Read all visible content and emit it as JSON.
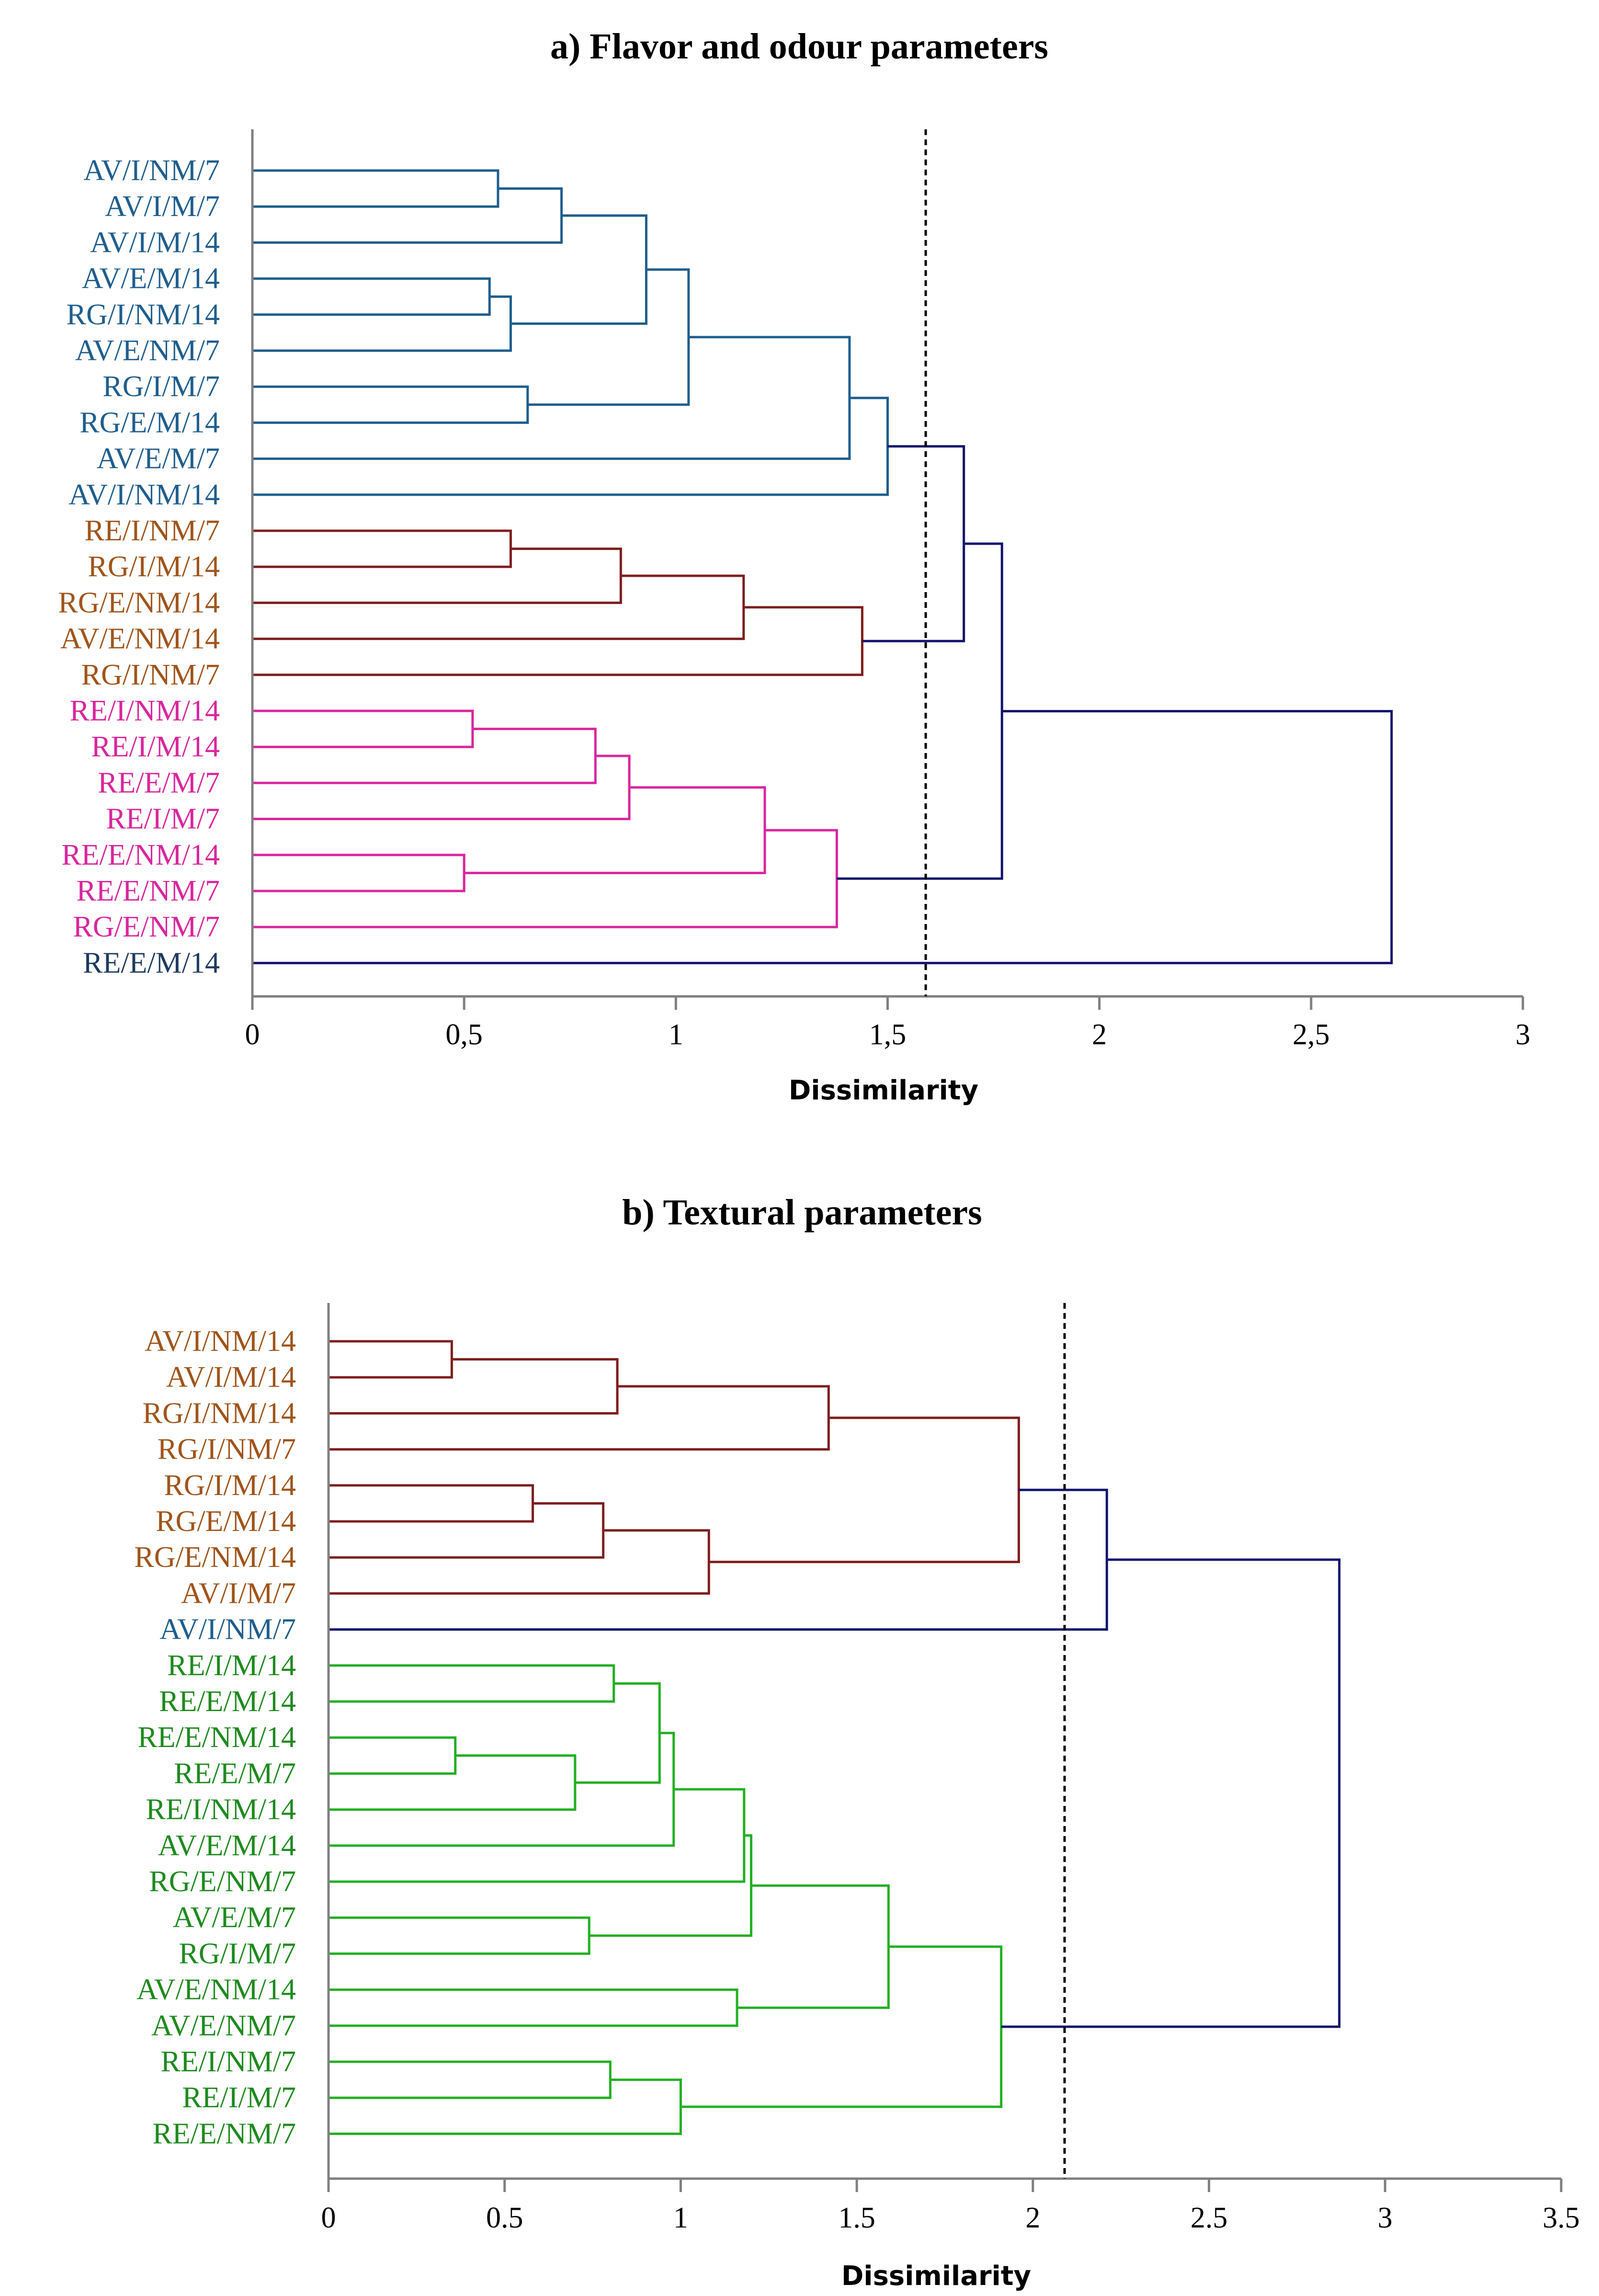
{
  "chart_data": [
    {
      "type": "dendrogram",
      "title": "a) Flavor and odour parameters",
      "xlabel": "Dissimilarity",
      "xlim": [
        0,
        3
      ],
      "xticks": [
        0,
        0.5,
        1,
        1.5,
        2,
        2.5,
        3
      ],
      "tick_labels": [
        "0",
        "0,5",
        "1",
        "1,5",
        "2",
        "2,5",
        "3"
      ],
      "cutoff": 1.59,
      "colors": {
        "blue": "#1F5E8E",
        "red": "#7F1E1E",
        "orange": "#A0541A",
        "magenta": "#D9269E",
        "navy": "#14146E",
        "darkblue": "#1E3A5F"
      },
      "leaves": [
        {
          "label": "AV/I/NM/7",
          "color": "#1F5E8E"
        },
        {
          "label": "AV/I/M/7",
          "color": "#1F5E8E"
        },
        {
          "label": "AV/I/M/14",
          "color": "#1F5E8E"
        },
        {
          "label": "AV/E/M/14",
          "color": "#1F5E8E"
        },
        {
          "label": "RG/I/NM/14",
          "color": "#1F5E8E"
        },
        {
          "label": "AV/E/NM/7",
          "color": "#1F5E8E"
        },
        {
          "label": "RG/I/M/7",
          "color": "#1F5E8E"
        },
        {
          "label": "RG/E/M/14",
          "color": "#1F5E8E"
        },
        {
          "label": "AV/E/M/7",
          "color": "#1F5E8E"
        },
        {
          "label": "AV/I/NM/14",
          "color": "#1F5E8E"
        },
        {
          "label": "RE/I/NM/7",
          "color": "#A0541A"
        },
        {
          "label": "RG/I/M/14",
          "color": "#A0541A"
        },
        {
          "label": "RG/E/NM/14",
          "color": "#A0541A"
        },
        {
          "label": "AV/E/NM/14",
          "color": "#A0541A"
        },
        {
          "label": "RG/I/NM/7",
          "color": "#A0541A"
        },
        {
          "label": "RE/I/NM/14",
          "color": "#D9269E"
        },
        {
          "label": "RE/I/M/14",
          "color": "#D9269E"
        },
        {
          "label": "RE/E/M/7",
          "color": "#D9269E"
        },
        {
          "label": "RE/I/M/7",
          "color": "#D9269E"
        },
        {
          "label": "RE/E/NM/14",
          "color": "#D9269E"
        },
        {
          "label": "RE/E/NM/7",
          "color": "#D9269E"
        },
        {
          "label": "RG/E/NM/7",
          "color": "#D9269E"
        },
        {
          "label": "RE/E/M/14",
          "color": "#1E3A5F"
        }
      ],
      "merges": [
        {
          "left": "L0",
          "right": "L1",
          "height": 0.58,
          "color": "#1F5E8E"
        },
        {
          "left": "M0",
          "right": "L2",
          "height": 0.73,
          "color": "#1F5E8E"
        },
        {
          "left": "L3",
          "right": "L4",
          "height": 0.56,
          "color": "#1F5E8E"
        },
        {
          "left": "M2",
          "right": "L5",
          "height": 0.61,
          "color": "#1F5E8E"
        },
        {
          "left": "M1",
          "right": "M3",
          "height": 0.93,
          "color": "#1F5E8E"
        },
        {
          "left": "L6",
          "right": "L7",
          "height": 0.65,
          "color": "#1F5E8E"
        },
        {
          "left": "M4",
          "right": "M5",
          "height": 1.03,
          "color": "#1F5E8E"
        },
        {
          "left": "M6",
          "right": "L8",
          "height": 1.41,
          "color": "#1F5E8E"
        },
        {
          "left": "M7",
          "right": "L9",
          "height": 1.5,
          "color": "#1F5E8E"
        },
        {
          "left": "L10",
          "right": "L11",
          "height": 0.61,
          "color": "#7F1E1E"
        },
        {
          "left": "M9",
          "right": "L12",
          "height": 0.87,
          "color": "#7F1E1E"
        },
        {
          "left": "M10",
          "right": "L13",
          "height": 1.16,
          "color": "#7F1E1E"
        },
        {
          "left": "M11",
          "right": "L14",
          "height": 1.44,
          "color": "#7F1E1E"
        },
        {
          "left": "M8",
          "right": "M12",
          "height": 1.68,
          "color": "#14146E"
        },
        {
          "left": "L15",
          "right": "L16",
          "height": 0.52,
          "color": "#D9269E"
        },
        {
          "left": "M14",
          "right": "L17",
          "height": 0.81,
          "color": "#D9269E"
        },
        {
          "left": "M15",
          "right": "L18",
          "height": 0.89,
          "color": "#D9269E"
        },
        {
          "left": "L19",
          "right": "L20",
          "height": 0.5,
          "color": "#D9269E"
        },
        {
          "left": "M16",
          "right": "M17",
          "height": 1.21,
          "color": "#D9269E"
        },
        {
          "left": "M18",
          "right": "L21",
          "height": 1.38,
          "color": "#D9269E"
        },
        {
          "left": "M13",
          "right": "M19",
          "height": 1.77,
          "color": "#14146E"
        },
        {
          "left": "M20",
          "right": "L22",
          "height": 2.69,
          "color": "#14146E"
        }
      ]
    },
    {
      "type": "dendrogram",
      "title": "b) Textural parameters",
      "xlabel": "Dissimilarity",
      "xlim": [
        0,
        3.5
      ],
      "xticks": [
        0,
        0.5,
        1,
        1.5,
        2,
        2.5,
        3,
        3.5
      ],
      "tick_labels": [
        "0",
        "0.5",
        "1",
        "1.5",
        "2",
        "2.5",
        "3",
        "3.5"
      ],
      "cutoff": 2.09,
      "colors": {
        "red": "#7F1E1E",
        "orange": "#A0541A",
        "green": "#22B022",
        "green_text": "#1E8A1E",
        "navy": "#14146E",
        "blue": "#1F5E8E"
      },
      "leaves": [
        {
          "label": "AV/I/NM/14",
          "color": "#A0541A"
        },
        {
          "label": "AV/I/M/14",
          "color": "#A0541A"
        },
        {
          "label": "RG/I/NM/14",
          "color": "#A0541A"
        },
        {
          "label": "RG/I/NM/7",
          "color": "#A0541A"
        },
        {
          "label": "RG/I/M/14",
          "color": "#A0541A"
        },
        {
          "label": "RG/E/M/14",
          "color": "#A0541A"
        },
        {
          "label": "RG/E/NM/14",
          "color": "#A0541A"
        },
        {
          "label": "AV/I/M/7",
          "color": "#A0541A"
        },
        {
          "label": "AV/I/NM/7",
          "color": "#1F5E8E"
        },
        {
          "label": "RE/I/M/14",
          "color": "#1E8A1E"
        },
        {
          "label": "RE/E/M/14",
          "color": "#1E8A1E"
        },
        {
          "label": "RE/E/NM/14",
          "color": "#1E8A1E"
        },
        {
          "label": "RE/E/M/7",
          "color": "#1E8A1E"
        },
        {
          "label": "RE/I/NM/14",
          "color": "#1E8A1E"
        },
        {
          "label": "AV/E/M/14",
          "color": "#1E8A1E"
        },
        {
          "label": "RG/E/NM/7",
          "color": "#1E8A1E"
        },
        {
          "label": "AV/E/M/7",
          "color": "#1E8A1E"
        },
        {
          "label": "RG/I/M/7",
          "color": "#1E8A1E"
        },
        {
          "label": "AV/E/NM/14",
          "color": "#1E8A1E"
        },
        {
          "label": "AV/E/NM/7",
          "color": "#1E8A1E"
        },
        {
          "label": "RE/I/NM/7",
          "color": "#1E8A1E"
        },
        {
          "label": "RE/I/M/7",
          "color": "#1E8A1E"
        },
        {
          "label": "RE/E/NM/7",
          "color": "#1E8A1E"
        }
      ],
      "merges": [
        {
          "left": "L0",
          "right": "L1",
          "height": 0.35,
          "color": "#7F1E1E"
        },
        {
          "left": "M0",
          "right": "L2",
          "height": 0.82,
          "color": "#7F1E1E"
        },
        {
          "left": "M1",
          "right": "L3",
          "height": 1.42,
          "color": "#7F1E1E"
        },
        {
          "left": "L4",
          "right": "L5",
          "height": 0.58,
          "color": "#7F1E1E"
        },
        {
          "left": "M3",
          "right": "L6",
          "height": 0.78,
          "color": "#7F1E1E"
        },
        {
          "left": "M4",
          "right": "L7",
          "height": 1.08,
          "color": "#7F1E1E"
        },
        {
          "left": "M2",
          "right": "M5",
          "height": 1.96,
          "color": "#7F1E1E"
        },
        {
          "left": "M6",
          "right": "L8",
          "height": 2.21,
          "color": "#14146E"
        },
        {
          "left": "L9",
          "right": "L10",
          "height": 0.81,
          "color": "#22B022"
        },
        {
          "left": "L11",
          "right": "L12",
          "height": 0.36,
          "color": "#22B022"
        },
        {
          "left": "M9",
          "right": "L13",
          "height": 0.7,
          "color": "#22B022"
        },
        {
          "left": "M8",
          "right": "M10",
          "height": 0.94,
          "color": "#22B022"
        },
        {
          "left": "M11",
          "right": "L14",
          "height": 0.98,
          "color": "#22B022"
        },
        {
          "left": "M12",
          "right": "L15",
          "height": 1.18,
          "color": "#22B022"
        },
        {
          "left": "L16",
          "right": "L17",
          "height": 0.74,
          "color": "#22B022"
        },
        {
          "left": "M13",
          "right": "M14",
          "height": 1.2,
          "color": "#22B022"
        },
        {
          "left": "L18",
          "right": "L19",
          "height": 1.16,
          "color": "#22B022"
        },
        {
          "left": "M15",
          "right": "M16",
          "height": 1.59,
          "color": "#22B022"
        },
        {
          "left": "L20",
          "right": "L21",
          "height": 0.8,
          "color": "#22B022"
        },
        {
          "left": "M18",
          "right": "L22",
          "height": 1.0,
          "color": "#22B022"
        },
        {
          "left": "M17",
          "right": "M19",
          "height": 1.91,
          "color": "#22B022"
        },
        {
          "left": "M7",
          "right": "M20",
          "height": 2.87,
          "color": "#14146E"
        }
      ]
    }
  ]
}
